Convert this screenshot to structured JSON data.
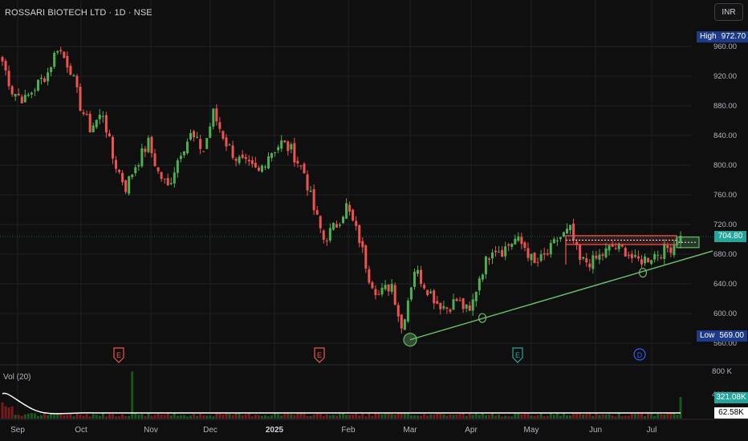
{
  "header": {
    "title": "ROSSARI BIOTECH LTD · 1D · NSE",
    "currency": "INR"
  },
  "stats": {
    "high_label": "High",
    "high_value": "972.70",
    "low_label": "Low",
    "low_value": "569.00",
    "last_price": "704.80"
  },
  "volume": {
    "label": "Vol (20)",
    "last_volume": "321.08K",
    "ma_volume": "62.58K"
  },
  "colors": {
    "up": "#26a69a",
    "up_candle": "#4caf50",
    "down": "#ef5350",
    "trendline": "#66bb6a",
    "zone_red": "#ef5350",
    "zone_green": "#66bb6a",
    "earnings": "#ef5350",
    "earnings_green": "#26a69a",
    "dividend": "#2962ff"
  },
  "chart_data": {
    "type": "candlestick",
    "title": "ROSSARI BIOTECH LTD · 1D · NSE",
    "x_tick_labels": [
      "Sep",
      "Oct",
      "Nov",
      "Dec",
      "2025",
      "Feb",
      "Mar",
      "Apr",
      "May",
      "Jun",
      "Jul"
    ],
    "y_tick_labels": [
      "960.00",
      "920.00",
      "880.00",
      "840.00",
      "800.00",
      "760.00",
      "720.00",
      "680.00",
      "640.00",
      "600.00",
      "560.00"
    ],
    "y_range": [
      555,
      985
    ],
    "volume_tick_labels": [
      "800 K",
      "400 K"
    ],
    "volume_range": [
      0,
      800000
    ],
    "grid": true,
    "price_path": [
      {
        "month": "Sep",
        "close": 940
      },
      {
        "month": "Sep",
        "close": 900
      },
      {
        "month": "Sep",
        "close": 888
      },
      {
        "month": "Sep",
        "close": 905
      },
      {
        "month": "Sep",
        "close": 925
      },
      {
        "month": "Sep",
        "close": 960
      },
      {
        "month": "Oct",
        "close": 930
      },
      {
        "month": "Oct",
        "close": 880
      },
      {
        "month": "Oct",
        "close": 850
      },
      {
        "month": "Oct",
        "close": 870
      },
      {
        "month": "Oct",
        "close": 810
      },
      {
        "month": "Oct",
        "close": 770
      },
      {
        "month": "Nov",
        "close": 800
      },
      {
        "month": "Nov",
        "close": 830
      },
      {
        "month": "Nov",
        "close": 790
      },
      {
        "month": "Nov",
        "close": 770
      },
      {
        "month": "Dec",
        "close": 820
      },
      {
        "month": "Dec",
        "close": 840
      },
      {
        "month": "Dec",
        "close": 820
      },
      {
        "month": "Dec",
        "close": 870
      },
      {
        "month": "Dec",
        "close": 830
      },
      {
        "month": "Dec",
        "close": 810
      },
      {
        "month": "2025",
        "close": 800
      },
      {
        "month": "2025",
        "close": 790
      },
      {
        "month": "2025",
        "close": 815
      },
      {
        "month": "2025",
        "close": 830
      },
      {
        "month": "2025",
        "close": 820
      },
      {
        "month": "2025",
        "close": 790
      },
      {
        "month": "2025",
        "close": 740
      },
      {
        "month": "2025",
        "close": 700
      },
      {
        "month": "Feb",
        "close": 720
      },
      {
        "month": "Feb",
        "close": 745
      },
      {
        "month": "Feb",
        "close": 700
      },
      {
        "month": "Feb",
        "close": 650
      },
      {
        "month": "Feb",
        "close": 625
      },
      {
        "month": "Feb",
        "close": 640
      },
      {
        "month": "Mar",
        "close": 580
      },
      {
        "month": "Mar",
        "close": 660
      },
      {
        "month": "Mar",
        "close": 640
      },
      {
        "month": "Mar",
        "close": 615
      },
      {
        "month": "Mar",
        "close": 608
      },
      {
        "month": "Mar",
        "close": 618
      },
      {
        "month": "Apr",
        "close": 600
      },
      {
        "month": "Apr",
        "close": 650
      },
      {
        "month": "Apr",
        "close": 690
      },
      {
        "month": "Apr",
        "close": 685
      },
      {
        "month": "Apr",
        "close": 700
      },
      {
        "month": "May",
        "close": 690
      },
      {
        "month": "May",
        "close": 665
      },
      {
        "month": "May",
        "close": 680
      },
      {
        "month": "May",
        "close": 700
      },
      {
        "month": "May",
        "close": 712
      },
      {
        "month": "May",
        "close": 670
      },
      {
        "month": "Jun",
        "close": 670
      },
      {
        "month": "Jun",
        "close": 680
      },
      {
        "month": "Jun",
        "close": 690
      },
      {
        "month": "Jun",
        "close": 685
      },
      {
        "month": "Jun",
        "close": 670
      },
      {
        "month": "Jun",
        "close": 675
      },
      {
        "month": "Jul",
        "close": 682
      },
      {
        "month": "Jul",
        "close": 690
      },
      {
        "month": "Jul",
        "close": 704.8
      }
    ],
    "annotations": {
      "trendline": {
        "from": {
          "month": "Mar",
          "price": 569
        },
        "to": {
          "month": "Jul",
          "price": 680
        }
      },
      "touch_points": [
        {
          "month": "Mar",
          "price": 569
        },
        {
          "month": "Apr",
          "price": 594
        },
        {
          "month": "Jun",
          "price": 655
        }
      ],
      "resistance_zone": {
        "from_month": "May",
        "low": 693,
        "high": 705
      },
      "breakout_box": {
        "month": "Jul",
        "low": 691,
        "high": 701
      },
      "events": [
        {
          "month": "Oct",
          "type": "E"
        },
        {
          "month": "2025",
          "type": "E"
        },
        {
          "month": "Apr",
          "type": "E"
        },
        {
          "month": "Jun",
          "type": "D"
        }
      ]
    },
    "volume_series": {
      "last": 321080,
      "ma": 62580
    }
  }
}
